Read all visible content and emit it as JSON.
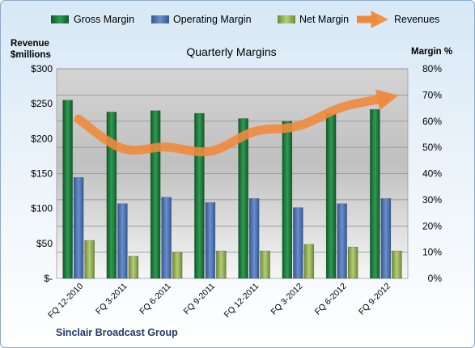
{
  "chart_data": {
    "type": "bar",
    "title": "Quarterly Margins",
    "left_axis_label_line1": "Revenue",
    "left_axis_label_line2": "$millions",
    "right_axis_label": "Margin %",
    "footer": "Sinclair Broadcast Group",
    "categories": [
      "FQ 12-2010",
      "FQ 3-2011",
      "FQ 6-2011",
      "FQ 9-2011",
      "FQ 12-2011",
      "FQ 3-2012",
      "FQ 6-2012",
      "FQ 9-2012"
    ],
    "left_ticks": [
      "$-",
      "$50",
      "$100",
      "$150",
      "$200",
      "$250",
      "$300"
    ],
    "right_ticks": [
      "0%",
      "10%",
      "20%",
      "30%",
      "40%",
      "50%",
      "60%",
      "70%",
      "80%"
    ],
    "ylim_left": [
      0,
      300
    ],
    "ylim_right": [
      0,
      80
    ],
    "series": [
      {
        "name": "Gross Margin",
        "axis": "right",
        "color": "#1e7a3c",
        "values": [
          68,
          63.5,
          64,
          63,
          61,
          60,
          63,
          64.5
        ]
      },
      {
        "name": "Operating Margin",
        "axis": "right",
        "color": "#4f74b8",
        "values": [
          38.5,
          28.5,
          31,
          29,
          30.5,
          27,
          28.5,
          30.5
        ]
      },
      {
        "name": "Net Margin",
        "axis": "right",
        "color": "#9bbb59",
        "values": [
          14.5,
          8.5,
          10,
          10.5,
          10.5,
          13,
          12,
          10.5
        ]
      },
      {
        "name": "Revenues",
        "axis": "left",
        "type": "line",
        "color": "#f0893c",
        "values": [
          228,
          186,
          188,
          182,
          210,
          218,
          245,
          258
        ]
      }
    ],
    "grid": true,
    "legend": "top"
  }
}
